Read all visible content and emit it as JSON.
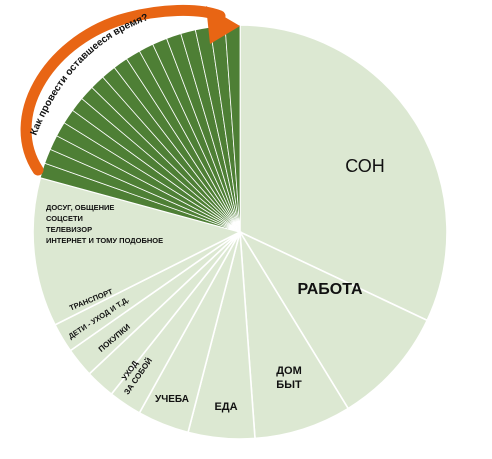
{
  "chart_data": {
    "type": "pie",
    "title": "",
    "slices": [
      {
        "label": "СОН",
        "value": 33.3,
        "color": "#dce8d2"
      },
      {
        "label": "РАБОТА",
        "value": 9.6,
        "color": "#dce8d2"
      },
      {
        "label": "ДОМ\nБЫТ",
        "value": 7.9,
        "color": "#dce8d2"
      },
      {
        "label": "ЕДА",
        "value": 5.4,
        "color": "#dce8d2"
      },
      {
        "label": "УЧЕБА",
        "value": 4.2,
        "color": "#dce8d2"
      },
      {
        "label": "УХОД\nЗА СОБОЙ",
        "value": 2.7,
        "color": "#dce8d2"
      },
      {
        "label": "ПОКУПКИ",
        "value": 2.4,
        "color": "#dce8d2"
      },
      {
        "label": "ДЕТИ - УХОД И Т.Д.",
        "value": 2.4,
        "color": "#dce8d2"
      },
      {
        "label": "ТРАНСПОРТ",
        "value": 2.4,
        "color": "#dce8d2"
      },
      {
        "label": "ДОСУГ, ОБЩЕНИЕ\nСОЦСЕТИ\nТЕЛЕВИЗОР\nИНТЕРНЕТ И ТОМУ ПОДОБНОЕ",
        "value": 12.1,
        "color": "#dce8d2"
      },
      {
        "label": "",
        "value": 1.2,
        "color": "#4e7f35"
      },
      {
        "label": "",
        "value": 1.2,
        "color": "#4e7f35"
      },
      {
        "label": "",
        "value": 1.2,
        "color": "#4e7f35"
      },
      {
        "label": "",
        "value": 1.2,
        "color": "#4e7f35"
      },
      {
        "label": "",
        "value": 1.2,
        "color": "#4e7f35"
      },
      {
        "label": "",
        "value": 1.2,
        "color": "#4e7f35"
      },
      {
        "label": "",
        "value": 1.2,
        "color": "#4e7f35"
      },
      {
        "label": "",
        "value": 1.2,
        "color": "#4e7f35"
      },
      {
        "label": "",
        "value": 1.2,
        "color": "#4e7f35"
      },
      {
        "label": "",
        "value": 1.2,
        "color": "#4e7f35"
      },
      {
        "label": "",
        "value": 1.2,
        "color": "#4e7f35"
      },
      {
        "label": "",
        "value": 1.2,
        "color": "#4e7f35"
      },
      {
        "label": "",
        "value": 1.2,
        "color": "#4e7f35"
      },
      {
        "label": "",
        "value": 1.2,
        "color": "#4e7f35"
      },
      {
        "label": "",
        "value": 1.2,
        "color": "#4e7f35"
      },
      {
        "label": "",
        "value": 1.2,
        "color": "#4e7f35"
      },
      {
        "label": "",
        "value": 1.2,
        "color": "#4e7f35"
      },
      {
        "label": "",
        "value": 1.2,
        "color": "#4e7f35"
      }
    ],
    "start_angle_deg": 0,
    "direction": "clockwise",
    "annotation": {
      "text": "Как провести оставшееся время?",
      "arrow_color": "#e86514"
    }
  },
  "colors": {
    "light_slice": "#dce8d2",
    "dark_slice": "#4e7f35",
    "slice_border": "#ffffff",
    "arrow": "#e86514"
  }
}
